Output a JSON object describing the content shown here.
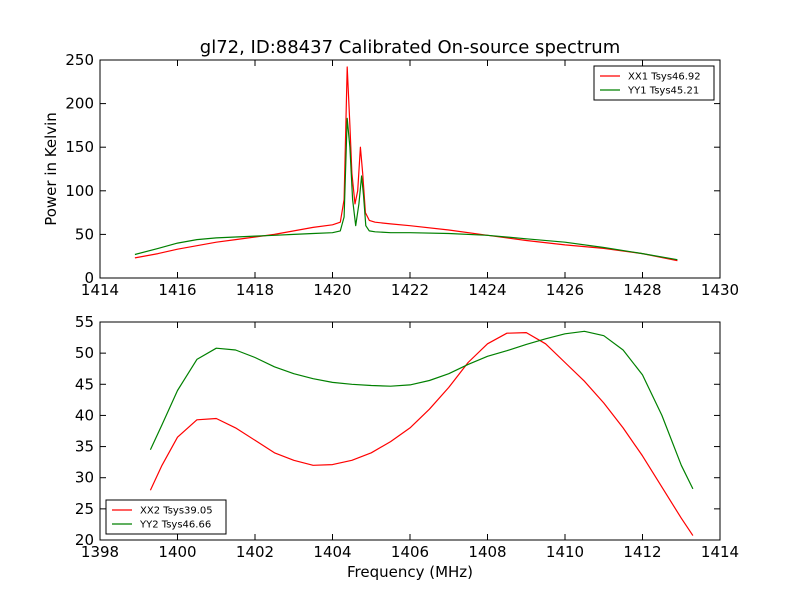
{
  "figure": {
    "title": "gl72, ID:88437 Calibrated On-source spectrum"
  },
  "chart_data": [
    {
      "type": "line",
      "title": "gl72, ID:88437 Calibrated On-source spectrum",
      "xlabel": "",
      "ylabel": "Power in Kelvin",
      "xlim": [
        1414,
        1430
      ],
      "ylim": [
        0,
        250
      ],
      "xticks": [
        1414,
        1416,
        1418,
        1420,
        1422,
        1424,
        1426,
        1428,
        1430
      ],
      "yticks": [
        0,
        50,
        100,
        150,
        200,
        250
      ],
      "grid": false,
      "legend": "top-right",
      "series": [
        {
          "name": "XX1 Tsys46.92",
          "color": "#ff0000",
          "x": [
            1414.9,
            1415.5,
            1416.0,
            1416.5,
            1417.0,
            1417.5,
            1418.0,
            1418.5,
            1419.0,
            1419.5,
            1420.0,
            1420.2,
            1420.3,
            1420.38,
            1420.45,
            1420.5,
            1420.58,
            1420.65,
            1420.72,
            1420.78,
            1420.85,
            1420.95,
            1421.1,
            1421.5,
            1422.0,
            1423.0,
            1424.0,
            1425.0,
            1426.0,
            1427.0,
            1428.0,
            1428.9
          ],
          "y": [
            23,
            28,
            33,
            37,
            41,
            44,
            47,
            50,
            54,
            58,
            61,
            64,
            90,
            242,
            175,
            120,
            85,
            100,
            150,
            120,
            75,
            66,
            64,
            62,
            60,
            55,
            49,
            43,
            38,
            34,
            28,
            20
          ]
        },
        {
          "name": "YY1 Tsys45.21",
          "color": "#008000",
          "x": [
            1414.9,
            1415.5,
            1416.0,
            1416.5,
            1417.0,
            1417.5,
            1418.0,
            1418.5,
            1419.0,
            1419.5,
            1420.0,
            1420.2,
            1420.3,
            1420.38,
            1420.45,
            1420.52,
            1420.6,
            1420.68,
            1420.75,
            1420.8,
            1420.86,
            1420.95,
            1421.1,
            1421.5,
            1422.0,
            1423.0,
            1424.0,
            1425.0,
            1426.0,
            1427.0,
            1428.0,
            1428.9
          ],
          "y": [
            27,
            34,
            40,
            44,
            46,
            47,
            48,
            49,
            50,
            51,
            52,
            54,
            70,
            183,
            150,
            90,
            60,
            85,
            117,
            95,
            60,
            54,
            53,
            52,
            52,
            51,
            49,
            45,
            41,
            35,
            28,
            21
          ]
        }
      ]
    },
    {
      "type": "line",
      "title": "",
      "xlabel": "Frequency (MHz)",
      "ylabel": "",
      "xlim": [
        1398,
        1414
      ],
      "ylim": [
        20,
        55
      ],
      "xticks": [
        1398,
        1400,
        1402,
        1404,
        1406,
        1408,
        1410,
        1412,
        1414
      ],
      "yticks": [
        20,
        25,
        30,
        35,
        40,
        45,
        50,
        55
      ],
      "grid": false,
      "legend": "bottom-left",
      "series": [
        {
          "name": "XX2 Tsys39.05",
          "color": "#ff0000",
          "x": [
            1399.3,
            1399.6,
            1400.0,
            1400.5,
            1401.0,
            1401.5,
            1402.0,
            1402.5,
            1403.0,
            1403.5,
            1404.0,
            1404.5,
            1405.0,
            1405.5,
            1406.0,
            1406.5,
            1407.0,
            1407.5,
            1408.0,
            1408.5,
            1409.0,
            1409.5,
            1410.0,
            1410.5,
            1411.0,
            1411.5,
            1412.0,
            1412.5,
            1413.0,
            1413.3
          ],
          "y": [
            28,
            32,
            36.5,
            39.3,
            39.5,
            38,
            36,
            34,
            32.8,
            32,
            32.1,
            32.8,
            34,
            35.8,
            38,
            41,
            44.5,
            48.5,
            51.5,
            53.2,
            53.3,
            51.5,
            48.5,
            45.5,
            42,
            38,
            33.5,
            28.5,
            23.5,
            20.7
          ]
        },
        {
          "name": "YY2 Tsys46.66",
          "color": "#008000",
          "x": [
            1399.3,
            1399.6,
            1400.0,
            1400.5,
            1401.0,
            1401.5,
            1402.0,
            1402.5,
            1403.0,
            1403.5,
            1404.0,
            1404.5,
            1405.0,
            1405.5,
            1406.0,
            1406.5,
            1407.0,
            1407.5,
            1408.0,
            1408.5,
            1409.0,
            1409.5,
            1410.0,
            1410.5,
            1411.0,
            1411.5,
            1412.0,
            1412.5,
            1413.0,
            1413.3
          ],
          "y": [
            34.5,
            38.5,
            44,
            49,
            50.8,
            50.5,
            49.3,
            47.8,
            46.7,
            45.9,
            45.3,
            45,
            44.8,
            44.7,
            44.9,
            45.6,
            46.7,
            48.2,
            49.5,
            50.4,
            51.4,
            52.3,
            53.1,
            53.5,
            52.8,
            50.5,
            46.5,
            40,
            32,
            28.2
          ]
        }
      ]
    }
  ]
}
